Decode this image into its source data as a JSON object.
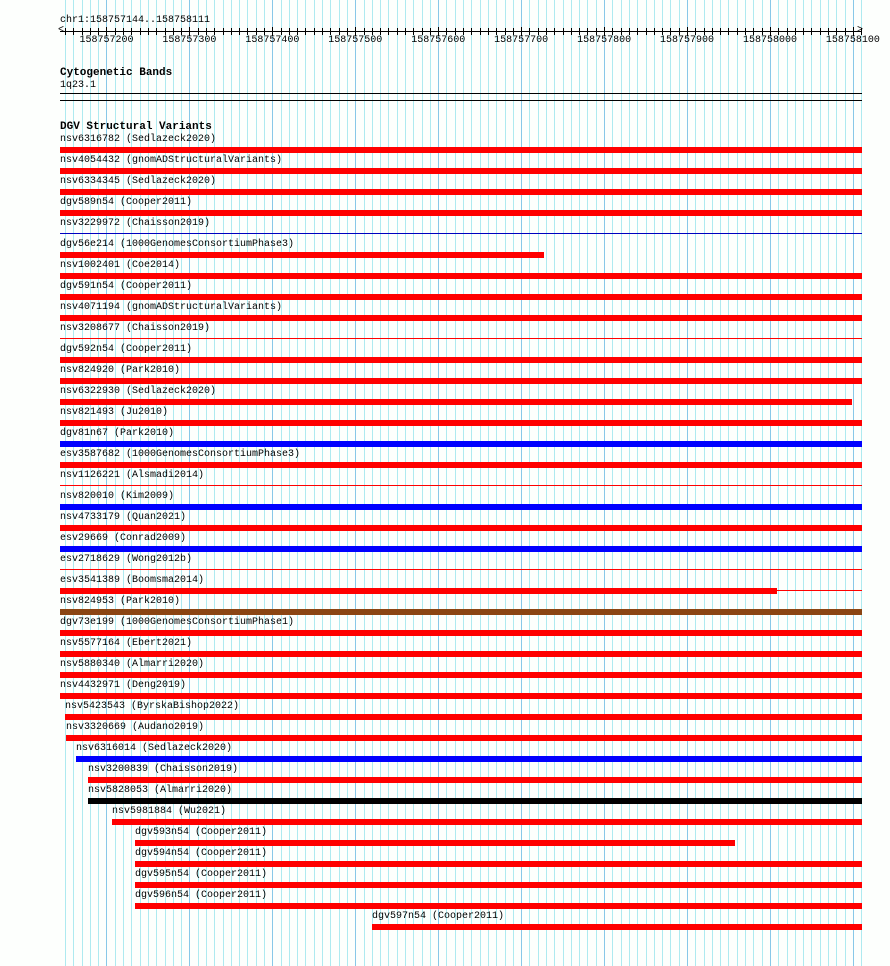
{
  "ruler": {
    "region_label": "chr1:158757144..158758111",
    "start": 158757144,
    "end": 158758111,
    "tick_labels": [
      "158757200",
      "158757300",
      "158757400",
      "158757500",
      "158757600",
      "158757700",
      "158757800",
      "158757900",
      "158758000",
      "158758100"
    ]
  },
  "cytoband_track": {
    "title": "Cytogenetic Bands",
    "band": "1q23.1"
  },
  "dgv_track": {
    "title": "DGV Structural Variants",
    "colors": {
      "red": "#ff0000",
      "blue": "#0000ff",
      "darkblue": "#0000c0",
      "brown": "#8b4513",
      "black": "#000000"
    },
    "features": [
      {
        "label": "nsv6316782 (Sedlazeck2020)",
        "start": 158757144,
        "end": 158758111,
        "color": "red",
        "style": "thick"
      },
      {
        "label": "nsv4054432 (gnomADStructuralVariants)",
        "start": 158757144,
        "end": 158758111,
        "color": "red",
        "style": "thick"
      },
      {
        "label": "nsv6334345 (Sedlazeck2020)",
        "start": 158757144,
        "end": 158758111,
        "color": "red",
        "style": "thick"
      },
      {
        "label": "dgv589n54 (Cooper2011)",
        "start": 158757144,
        "end": 158758111,
        "color": "red",
        "style": "thick"
      },
      {
        "label": "nsv3229972 (Chaisson2019)",
        "start": 158757144,
        "end": 158758111,
        "color": "darkblue",
        "style": "thin"
      },
      {
        "label": "dgv56e214 (1000GenomesConsortiumPhase3)",
        "start": 158757144,
        "end": 158757728,
        "color": "red",
        "style": "thick"
      },
      {
        "label": "nsv1002401 (Coe2014)",
        "start": 158757144,
        "end": 158758111,
        "color": "red",
        "style": "thick"
      },
      {
        "label": "dgv591n54 (Cooper2011)",
        "start": 158757144,
        "end": 158758111,
        "color": "red",
        "style": "thick"
      },
      {
        "label": "nsv4071194 (gnomADStructuralVariants)",
        "start": 158757144,
        "end": 158758111,
        "color": "red",
        "style": "thick"
      },
      {
        "label": "nsv3208677 (Chaisson2019)",
        "start": 158757144,
        "end": 158758111,
        "color": "red",
        "style": "thin"
      },
      {
        "label": "dgv592n54 (Cooper2011)",
        "start": 158757144,
        "end": 158758111,
        "color": "red",
        "style": "thick"
      },
      {
        "label": "nsv824920 (Park2010)",
        "start": 158757144,
        "end": 158758111,
        "color": "red",
        "style": "thick"
      },
      {
        "label": "nsv6322930 (Sedlazeck2020)",
        "start": 158757144,
        "end": 158758099,
        "color": "red",
        "style": "thick"
      },
      {
        "label": "nsv821493 (Ju2010)",
        "start": 158757144,
        "end": 158758111,
        "color": "red",
        "style": "thick"
      },
      {
        "label": "dgv81n67 (Park2010)",
        "start": 158757144,
        "end": 158758111,
        "color": "blue",
        "style": "thick"
      },
      {
        "label": "esv3587682 (1000GenomesConsortiumPhase3)",
        "start": 158757144,
        "end": 158758111,
        "color": "red",
        "style": "thick"
      },
      {
        "label": "nsv1126221 (Alsmadi2014)",
        "start": 158757144,
        "end": 158758111,
        "color": "red",
        "style": "thin"
      },
      {
        "label": "nsv820010 (Kim2009)",
        "start": 158757144,
        "end": 158758111,
        "color": "blue",
        "style": "thick"
      },
      {
        "label": "nsv4733179 (Quan2021)",
        "start": 158757144,
        "end": 158758111,
        "color": "red",
        "style": "thick"
      },
      {
        "label": "esv29669 (Conrad2009)",
        "start": 158757144,
        "end": 158758111,
        "color": "blue",
        "style": "thick"
      },
      {
        "label": "esv2718629 (Wong2012b)",
        "start": 158757144,
        "end": 158758111,
        "color": "red",
        "style": "thin"
      },
      {
        "label": "esv3541389 (Boomsma2014)",
        "start": 158757144,
        "end": 158758111,
        "thick_end": 158758009,
        "color": "red",
        "style": "mixed"
      },
      {
        "label": "nsv824953 (Park2010)",
        "start": 158757144,
        "end": 158758111,
        "color": "brown",
        "style": "thick"
      },
      {
        "label": "dgv73e199 (1000GenomesConsortiumPhase1)",
        "start": 158757144,
        "end": 158758111,
        "color": "red",
        "style": "thick"
      },
      {
        "label": "nsv5577164 (Ebert2021)",
        "start": 158757144,
        "end": 158758111,
        "color": "red",
        "style": "thick"
      },
      {
        "label": "nsv5880340 (Almarri2020)",
        "start": 158757144,
        "end": 158758111,
        "color": "red",
        "style": "thick"
      },
      {
        "label": "nsv4432971 (Deng2019)",
        "start": 158757144,
        "end": 158758111,
        "color": "red",
        "style": "thick"
      },
      {
        "label": "nsv5423543 (ByrskaBishop2022)",
        "start": 158757150,
        "end": 158758111,
        "color": "red",
        "style": "thick"
      },
      {
        "label": "nsv3320669 (Audano2019)",
        "start": 158757151,
        "end": 158758111,
        "color": "red",
        "style": "thick"
      },
      {
        "label": "nsv6316014 (Sedlazeck2020)",
        "start": 158757163,
        "end": 158758111,
        "color": "blue",
        "style": "thick"
      },
      {
        "label": "nsv3200839 (Chaisson2019)",
        "start": 158757178,
        "end": 158758111,
        "color": "red",
        "style": "thick"
      },
      {
        "label": "nsv5828053 (Almarri2020)",
        "start": 158757178,
        "end": 158758111,
        "color": "black",
        "style": "thick"
      },
      {
        "label": "nsv5981884 (Wu2021)",
        "start": 158757207,
        "end": 158758111,
        "color": "red",
        "style": "thick"
      },
      {
        "label": "dgv593n54 (Cooper2011)",
        "start": 158757234,
        "end": 158757958,
        "color": "red",
        "style": "thick"
      },
      {
        "label": "dgv594n54 (Cooper2011)",
        "start": 158757234,
        "end": 158758111,
        "color": "red",
        "style": "thick"
      },
      {
        "label": "dgv595n54 (Cooper2011)",
        "start": 158757234,
        "end": 158758111,
        "color": "red",
        "style": "thick"
      },
      {
        "label": "dgv596n54 (Cooper2011)",
        "start": 158757234,
        "end": 158758111,
        "color": "red",
        "style": "thick"
      },
      {
        "label": "dgv597n54 (Cooper2011)",
        "start": 158757520,
        "end": 158758111,
        "color": "red",
        "style": "thick"
      }
    ]
  }
}
